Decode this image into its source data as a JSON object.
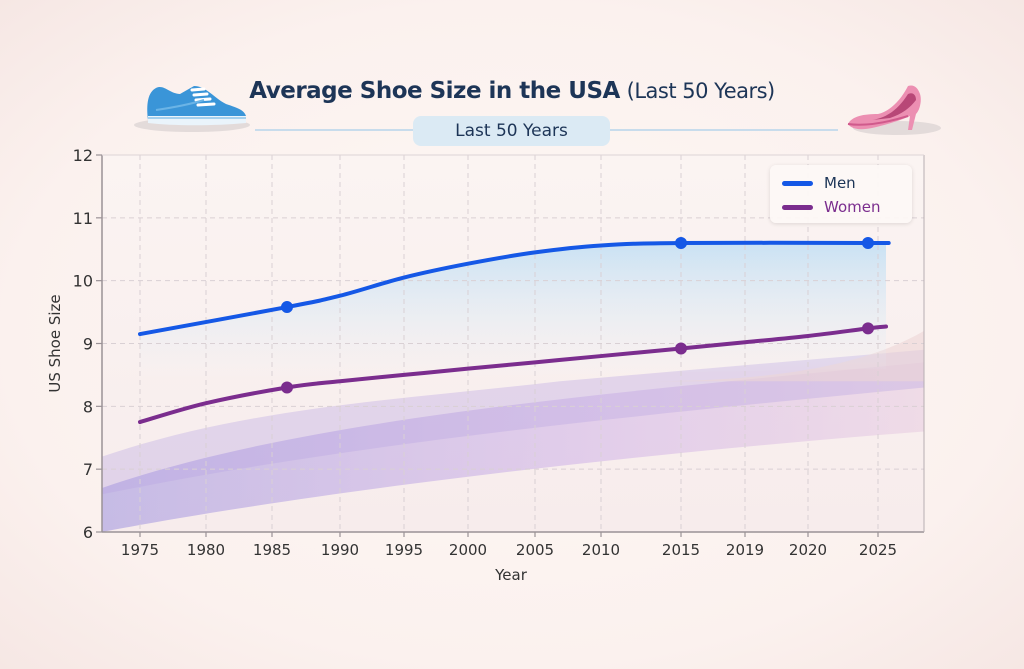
{
  "header": {
    "title_main": "Average Shoe Size in the USA",
    "title_suffix": "(Last 50 Years)",
    "subtitle": "Last 50 Years",
    "left_icon": "sneaker-icon",
    "right_icon": "high-heel-icon"
  },
  "colors": {
    "men": "#1558e6",
    "women": "#7b2d8e",
    "axis_text": "#333333",
    "title": "#1d3557"
  },
  "chart_data": {
    "type": "line",
    "title": "Average Shoe Size in the USA (Last 50 Years)",
    "subtitle": "Last 50 Years",
    "xlabel": "Year",
    "ylabel": "US Shoe Size",
    "ylim": [
      6,
      12
    ],
    "yticks": [
      6,
      7,
      8,
      9,
      10,
      11,
      12
    ],
    "xtick_labels": [
      "1975",
      "1980",
      "1985",
      "1990",
      "1995",
      "2000",
      "2005",
      "2010",
      "2015",
      "2019",
      "2020",
      "2025"
    ],
    "grid": true,
    "legend": {
      "position": "top-right",
      "entries": [
        "Men",
        "Women"
      ]
    },
    "series": [
      {
        "name": "Men",
        "color": "#1558e6",
        "points": [
          {
            "x": "1975",
            "y": 9.15
          },
          {
            "x": "1985+",
            "y": 9.58,
            "marker": true
          },
          {
            "x": "1990",
            "y": 9.76
          },
          {
            "x": "1995",
            "y": 10.05
          },
          {
            "x": "2000",
            "y": 10.27
          },
          {
            "x": "2005",
            "y": 10.45
          },
          {
            "x": "2010",
            "y": 10.56
          },
          {
            "x": "2015",
            "y": 10.6,
            "marker": true
          },
          {
            "x": "2025-",
            "y": 10.6,
            "marker": true
          },
          {
            "x": "2025+",
            "y": 10.6
          }
        ]
      },
      {
        "name": "Women",
        "color": "#7b2d8e",
        "points": [
          {
            "x": "1975",
            "y": 7.75
          },
          {
            "x": "1980",
            "y": 8.05
          },
          {
            "x": "1985+",
            "y": 8.3,
            "marker": true
          },
          {
            "x": "1990",
            "y": 8.4
          },
          {
            "x": "1995",
            "y": 8.5
          },
          {
            "x": "2000",
            "y": 8.6
          },
          {
            "x": "2005",
            "y": 8.7
          },
          {
            "x": "2010",
            "y": 8.8
          },
          {
            "x": "2015",
            "y": 8.92,
            "marker": true
          },
          {
            "x": "2019",
            "y": 9.02
          },
          {
            "x": "2020",
            "y": 9.12
          },
          {
            "x": "2025-",
            "y": 9.24,
            "marker": true
          },
          {
            "x": "2025+",
            "y": 9.27
          }
        ]
      }
    ]
  }
}
